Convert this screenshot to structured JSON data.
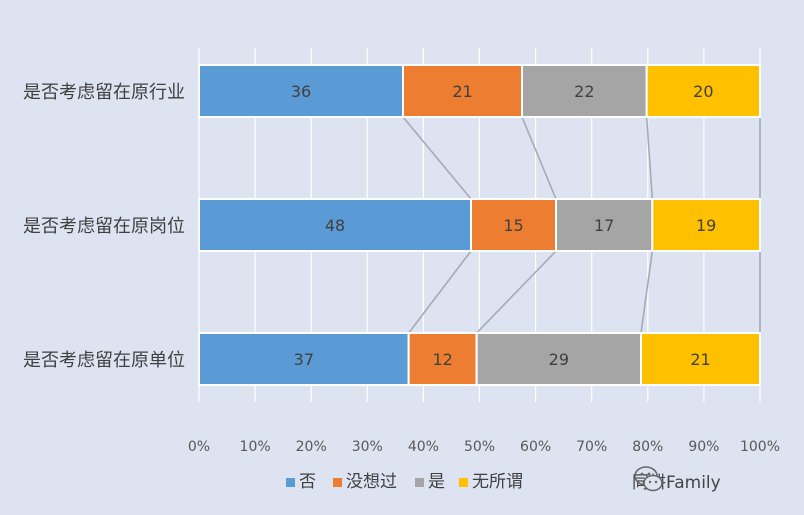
{
  "chart_data": {
    "type": "bar",
    "orientation": "horizontal",
    "stacked": "percent",
    "title": "",
    "categories": [
      "是否考虑留在原行业",
      "是否考虑留在原岗位",
      "是否考虑留在原单位"
    ],
    "series": [
      {
        "name": "否",
        "values": [
          36,
          48,
          37
        ],
        "color": "#5b9bd5"
      },
      {
        "name": "没想过",
        "values": [
          21,
          15,
          12
        ],
        "color": "#ed7d31"
      },
      {
        "name": "是",
        "values": [
          22,
          17,
          29
        ],
        "color": "#a5a5a5"
      },
      {
        "name": "无所谓",
        "values": [
          20,
          19,
          21
        ],
        "color": "#ffc000"
      }
    ],
    "xlim": [
      0,
      100
    ],
    "xticks": [
      "0%",
      "10%",
      "20%",
      "30%",
      "40%",
      "50%",
      "60%",
      "70%",
      "80%",
      "90%",
      "100%"
    ],
    "grid": true,
    "series_lines": true,
    "legend_position": "bottom"
  },
  "watermark": {
    "text": "同耕Family",
    "icon": "wechat-icon"
  }
}
